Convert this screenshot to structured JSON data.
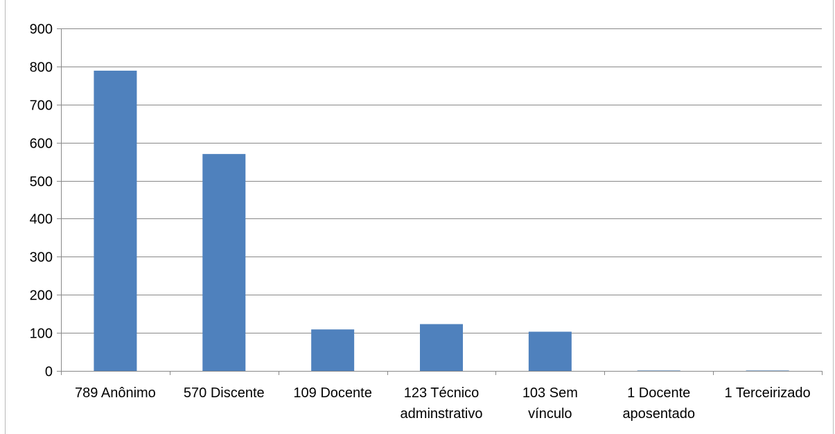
{
  "chart_data": {
    "type": "bar",
    "categories": [
      "789 Anônimo",
      "570 Discente",
      "109 Docente",
      "123 Técnico adminstrativo",
      "103 Sem vínculo",
      "1 Docente aposentado",
      "1 Terceirizado"
    ],
    "category_lines": [
      [
        "789 Anônimo"
      ],
      [
        "570 Discente"
      ],
      [
        "109 Docente"
      ],
      [
        "123 Técnico",
        "adminstrativo"
      ],
      [
        "103 Sem",
        "vínculo"
      ],
      [
        "1 Docente",
        "aposentado"
      ],
      [
        "1 Terceirizado"
      ]
    ],
    "values": [
      789,
      570,
      109,
      123,
      103,
      1,
      1
    ],
    "ylim": [
      0,
      900
    ],
    "yticks": [
      0,
      100,
      200,
      300,
      400,
      500,
      600,
      700,
      800,
      900
    ],
    "grid": true,
    "bar_color": "#4f81bd",
    "title": "",
    "xlabel": "",
    "ylabel": ""
  }
}
